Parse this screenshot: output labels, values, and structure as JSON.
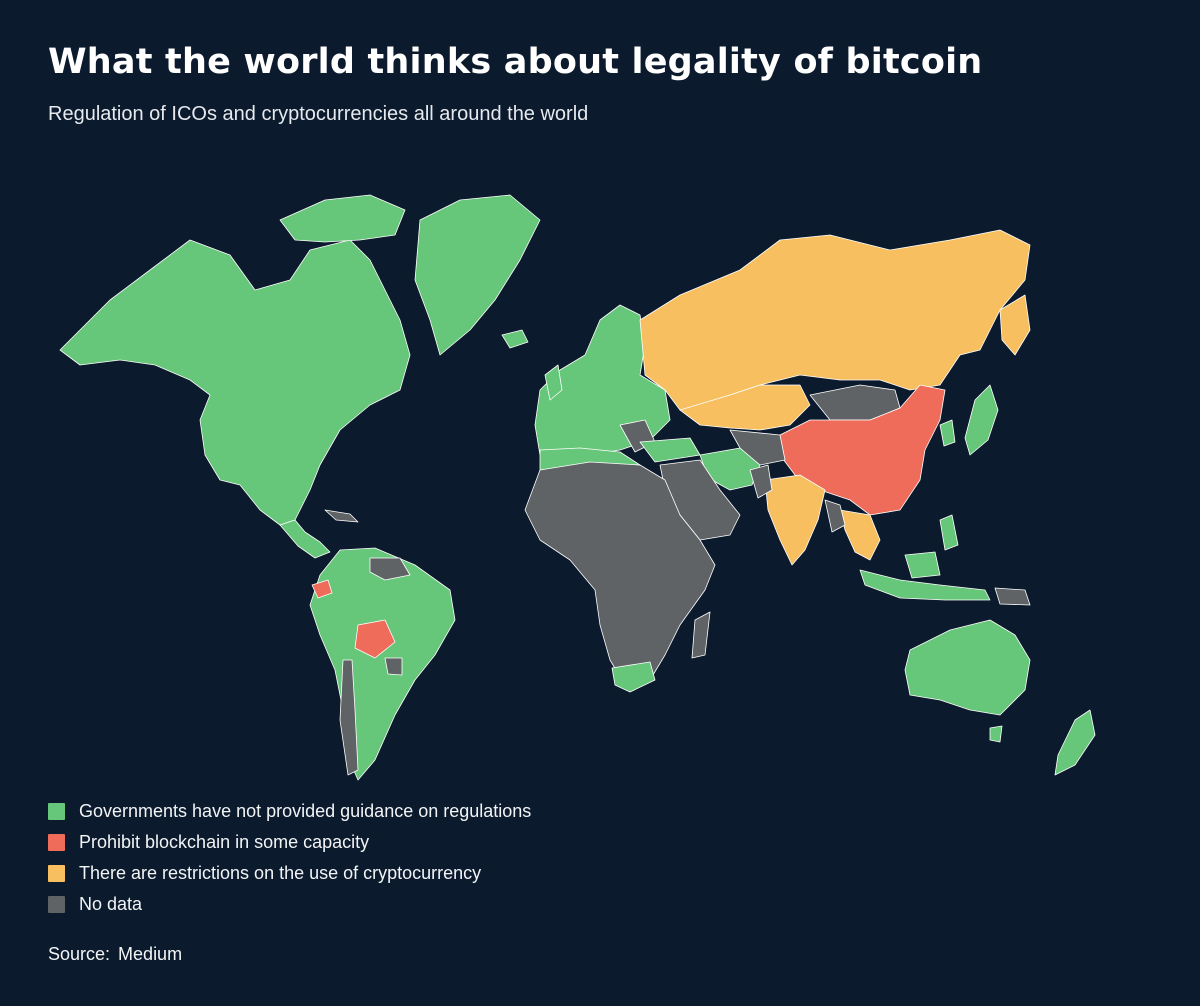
{
  "header": {
    "title": "What the world thinks about legality of bitcoin",
    "subtitle": "Regulation of ICOs and cryptocurrencies all around the world"
  },
  "colors": {
    "background": "#0b1a2c",
    "green": "#66c679",
    "red": "#ef6b5a",
    "yellow": "#f7bf60",
    "gray": "#606366",
    "border": "#ffffff"
  },
  "legend": {
    "items": [
      {
        "label": "Governments have not provided guidance on regulations",
        "color": "#66c679"
      },
      {
        "label": "Prohibit blockchain in some capacity",
        "color": "#ef6b5a"
      },
      {
        "label": "There are restrictions on the use of cryptocurrency",
        "color": "#f7bf60"
      },
      {
        "label": "No data",
        "color": "#606366"
      }
    ]
  },
  "source": {
    "label": "Source:",
    "value": "Medium"
  }
}
